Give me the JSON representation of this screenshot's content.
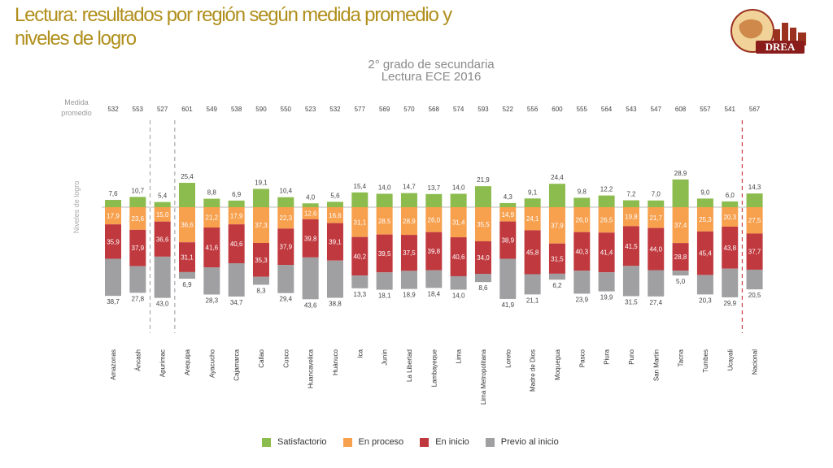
{
  "slide": {
    "title_line1": "Lectura: resultados por región según medida promedio  y",
    "title_line2": "niveles de  logro"
  },
  "logo": {
    "text": "DREA"
  },
  "chart_data": {
    "type": "bar",
    "stacked": true,
    "title": "2° grado de secundaria",
    "subtitle": "Lectura ECE 2016",
    "ylabel": "Niveles de logro",
    "mean_label_line1": "Medida",
    "mean_label_line2": "promedio",
    "categories": [
      "Amazonas",
      "Áncash",
      "Apurímac",
      "Arequipa",
      "Ayacucho",
      "Cajamarca",
      "Callao",
      "Cusco",
      "Huancavelica",
      "Huánuco",
      "Ica",
      "Junín",
      "La Libertad",
      "Lambayeque",
      "Lima",
      "Lima Metropolitana",
      "Loreto",
      "Madre de Dios",
      "Moquegua",
      "Pasco",
      "Piura",
      "Puno",
      "San Martín",
      "Tacna",
      "Tumbes",
      "Ucayali",
      "Nacional"
    ],
    "medida_promedio": [
      532,
      553,
      527,
      601,
      549,
      538,
      590,
      550,
      523,
      532,
      577,
      569,
      570,
      568,
      574,
      593,
      522,
      556,
      600,
      555,
      564,
      543,
      547,
      608,
      557,
      541,
      567
    ],
    "series": [
      {
        "name": "Satisfactorio",
        "color": "#8cbb4e",
        "values": [
          7.6,
          10.7,
          5.4,
          25.4,
          8.8,
          6.9,
          19.1,
          10.4,
          4.0,
          5.6,
          15.4,
          14.0,
          14.7,
          13.7,
          14.0,
          21.9,
          4.3,
          9.1,
          24.4,
          9.8,
          12.2,
          7.2,
          7.0,
          28.9,
          9.0,
          6.0,
          14.3
        ]
      },
      {
        "name": "En proceso",
        "color": "#f7a04e",
        "values": [
          17.9,
          23.6,
          15.0,
          36.6,
          21.2,
          17.9,
          37.3,
          22.3,
          12.6,
          16.6,
          31.1,
          28.5,
          28.9,
          26.0,
          31.4,
          35.5,
          14.9,
          24.1,
          37.9,
          26.0,
          26.5,
          19.8,
          21.7,
          37.4,
          25.3,
          20.3,
          27.5
        ]
      },
      {
        "name": "En inicio",
        "color": "#c0393e",
        "values": [
          35.9,
          37.9,
          36.6,
          31.1,
          41.6,
          40.6,
          35.3,
          37.9,
          39.8,
          39.1,
          40.2,
          39.5,
          37.5,
          39.8,
          40.6,
          34.0,
          38.9,
          45.8,
          31.5,
          40.3,
          41.4,
          41.5,
          44.0,
          28.8,
          45.4,
          43.8,
          37.7
        ]
      },
      {
        "name": "Previo al inicio",
        "color": "#a0a0a2",
        "values": [
          38.7,
          27.8,
          43.0,
          6.9,
          28.3,
          34.7,
          8.3,
          29.4,
          43.6,
          38.8,
          13.3,
          18.1,
          18.9,
          18.4,
          14.0,
          8.6,
          41.9,
          21.1,
          6.2,
          23.9,
          19.9,
          31.5,
          27.4,
          5.0,
          20.3,
          29.9,
          20.5
        ]
      }
    ],
    "separators_after": [
      "Áncash",
      "Apurímac",
      "Ucayali"
    ],
    "legend_position": "bottom"
  }
}
